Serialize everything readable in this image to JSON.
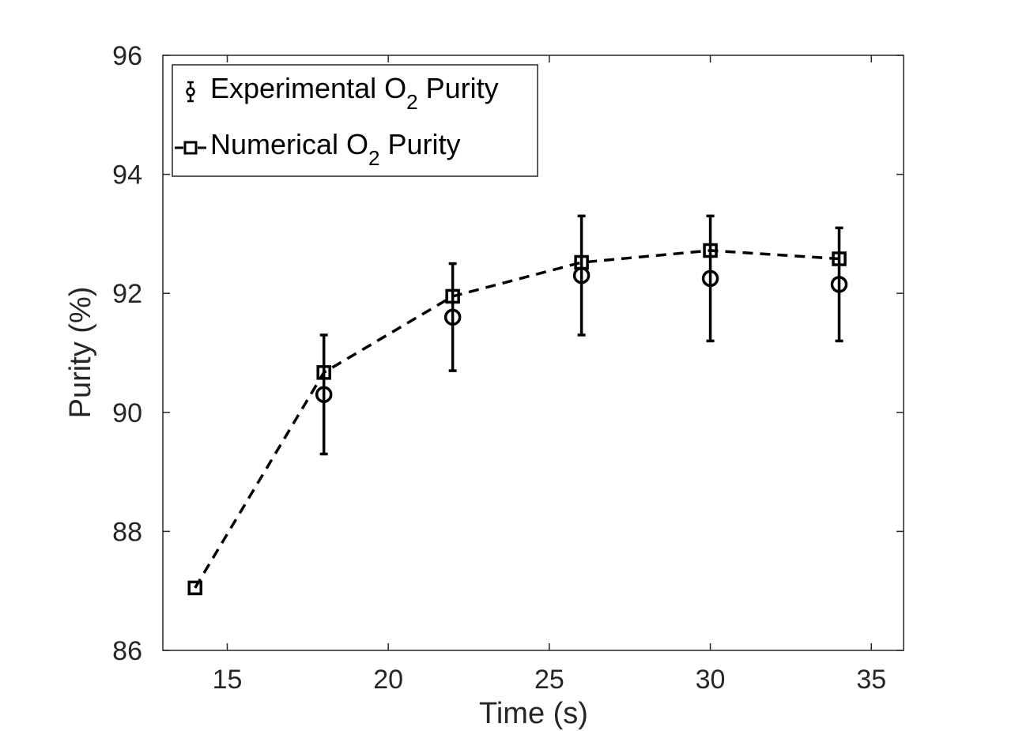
{
  "chart_data": {
    "type": "scatter",
    "title": "",
    "xlabel": "Time (s)",
    "ylabel": "Purity (%)",
    "xlim": [
      13,
      36
    ],
    "ylim": [
      86,
      96
    ],
    "xticks": [
      15,
      20,
      25,
      30,
      35
    ],
    "yticks": [
      86,
      88,
      90,
      92,
      94,
      96
    ],
    "xtick_labels": [
      "15",
      "20",
      "25",
      "30",
      "35"
    ],
    "ytick_labels": [
      "86",
      "88",
      "90",
      "92",
      "94",
      "96"
    ],
    "legend_position": "top-left",
    "series": [
      {
        "name": "Experimental O2 Purity",
        "legend_parts": [
          "Experimental O",
          "2",
          " Purity"
        ],
        "style": "errorbar-circle",
        "x": [
          18,
          22,
          26,
          30,
          34
        ],
        "y": [
          90.3,
          91.6,
          92.3,
          92.25,
          92.15
        ],
        "err_low": [
          89.3,
          90.7,
          91.3,
          91.2,
          91.2
        ],
        "err_high": [
          91.3,
          92.5,
          93.3,
          93.3,
          93.1
        ]
      },
      {
        "name": "Numerical O2 Purity",
        "legend_parts": [
          "Numerical O",
          "2",
          " Purity"
        ],
        "style": "dashed-square",
        "x": [
          14,
          18,
          22,
          26,
          30,
          34
        ],
        "y": [
          87.05,
          90.67,
          91.95,
          92.52,
          92.72,
          92.58
        ]
      }
    ]
  }
}
